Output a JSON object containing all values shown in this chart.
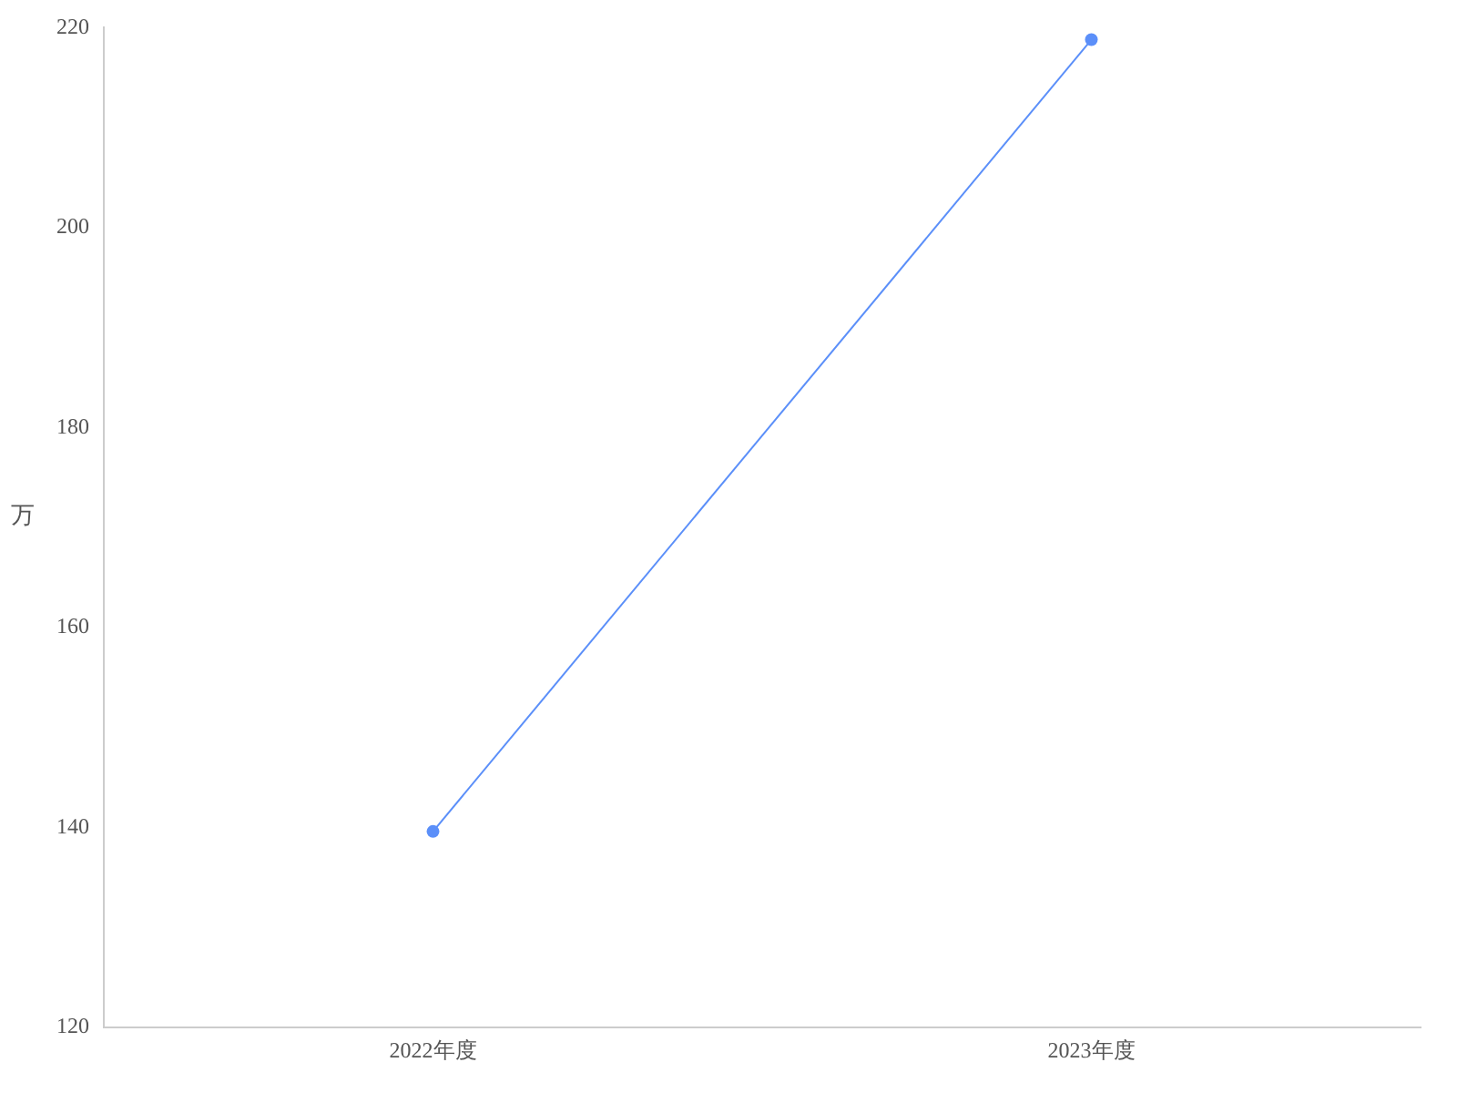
{
  "chart_data": {
    "type": "line",
    "ylabel": "万",
    "categories": [
      "2022年度",
      "2023年度"
    ],
    "series": [
      {
        "color": "#5b8ff9",
        "values": [
          139.6,
          218.8
        ]
      }
    ],
    "ylim": [
      120,
      220
    ],
    "yticks": [
      120,
      140,
      160,
      180,
      200,
      220
    ],
    "grid": false,
    "legend": false,
    "marker": "circle",
    "line_style": "solid"
  }
}
